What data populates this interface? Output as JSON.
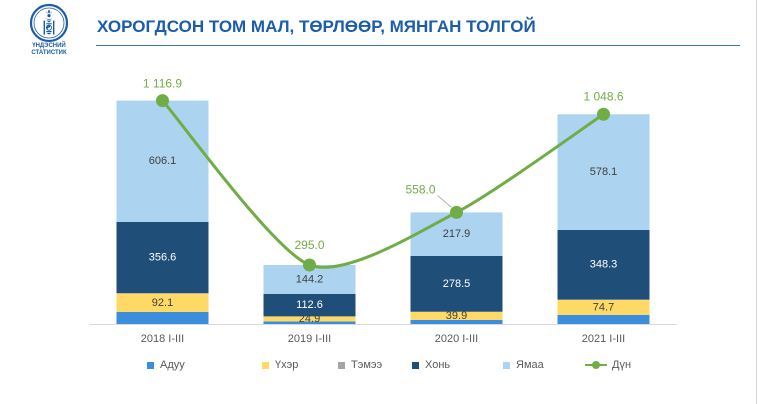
{
  "header": {
    "logo_icon": "soyombo-emblem-icon",
    "logo_line1": "ҮНДЭСНИЙ",
    "logo_line2": "СТАТИСТИК",
    "brand_color": "#1b5cab"
  },
  "chart_data": {
    "type": "bar",
    "stacked": true,
    "title": "ХОРОГДСОН ТОМ МАЛ, ТӨРЛӨӨР, МЯНГАН ТОЛГОЙ",
    "categories": [
      "2018 I-III",
      "2019 I-III",
      "2020 I-III",
      "2021 I-III"
    ],
    "ylim": [
      0,
      1250
    ],
    "grid": false,
    "legend": "bottom",
    "series": [
      {
        "name": "Адуу",
        "type": "bar",
        "color": "#3b8edb",
        "values": [
          60.0,
          12.6,
          20.5,
          45.8
        ]
      },
      {
        "name": "Үхэр",
        "type": "bar",
        "color": "#ffd966",
        "values": [
          92.1,
          24.9,
          39.9,
          74.7
        ],
        "labels": [
          "92.1",
          "24.9",
          "39.9",
          "74.7"
        ]
      },
      {
        "name": "Тэмээ",
        "type": "bar",
        "color": "#a5a5a5",
        "values": [
          2.1,
          0.7,
          1.2,
          1.7
        ]
      },
      {
        "name": "Хонь",
        "type": "bar",
        "color": "#1f4e79",
        "values": [
          356.6,
          112.6,
          278.5,
          348.3
        ],
        "labels": [
          "356.6",
          "112.6",
          "278.5",
          "348.3"
        ]
      },
      {
        "name": "Ямаа",
        "type": "bar",
        "color": "#acd3ef",
        "values": [
          606.1,
          144.2,
          217.9,
          578.1
        ],
        "labels": [
          "606.1",
          "144.2",
          "217.9",
          "578.1"
        ]
      },
      {
        "name": "Дүн",
        "type": "line",
        "color": "#70ad47",
        "values": [
          1116.9,
          295.0,
          558.0,
          1048.6
        ],
        "labels": [
          "1 116.9",
          "295.0",
          "558.0",
          "1 048.6"
        ]
      }
    ]
  }
}
